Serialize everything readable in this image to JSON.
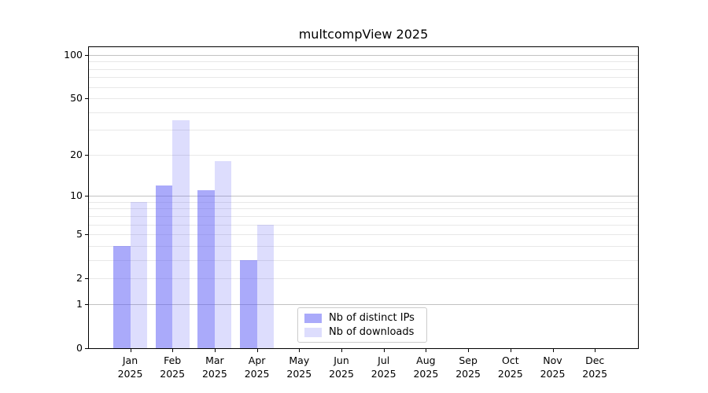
{
  "figure": {
    "background": "#ffffff",
    "axis_color": "#000000",
    "text_color": "#000000"
  },
  "chart_data": {
    "type": "bar",
    "title": "multcompView 2025",
    "categories": [
      "Jan",
      "Feb",
      "Mar",
      "Apr",
      "May",
      "Jun",
      "Jul",
      "Aug",
      "Sep",
      "Oct",
      "Nov",
      "Dec"
    ],
    "category_year": "2025",
    "series": [
      {
        "name": "Nb of distinct IPs",
        "color": "rgba(85,85,245,0.5)",
        "values": [
          4,
          12,
          11,
          3,
          0,
          0,
          0,
          0,
          0,
          0,
          0,
          0
        ]
      },
      {
        "name": "Nb of downloads",
        "color": "rgba(85,85,245,0.2)",
        "values": [
          9,
          35,
          18,
          6,
          0,
          0,
          0,
          0,
          0,
          0,
          0,
          0
        ]
      }
    ],
    "xlabel": "",
    "ylabel": "",
    "yscale": "log1p",
    "ylim": [
      0,
      113
    ],
    "yticks": [
      0,
      1,
      2,
      5,
      10,
      20,
      50,
      100
    ],
    "gridlines": {
      "major": [
        1,
        10,
        100
      ],
      "minor": [
        2,
        3,
        4,
        5,
        6,
        7,
        8,
        9,
        20,
        30,
        40,
        50,
        60,
        70,
        80,
        90
      ],
      "major_color": "#c2c2c2",
      "minor_color": "#e8e8e8",
      "on": true
    },
    "legend": {
      "position": "lower-center",
      "border_color": "#cccccc",
      "entries": [
        "Nb of distinct IPs",
        "Nb of downloads"
      ]
    }
  }
}
